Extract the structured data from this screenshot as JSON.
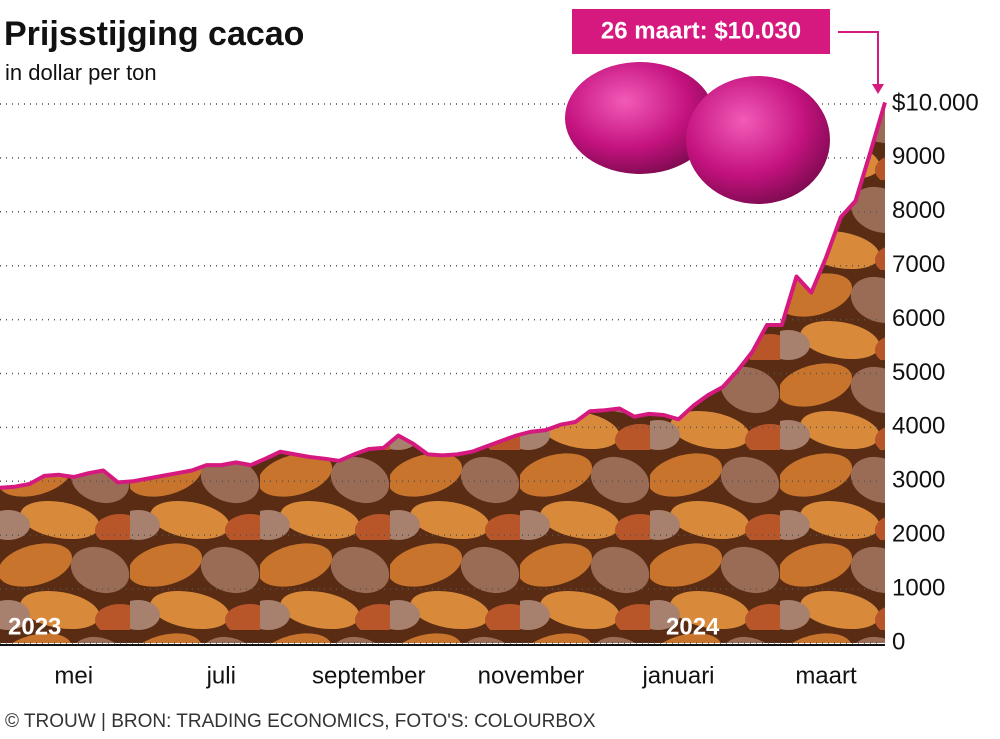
{
  "chart_data": {
    "type": "area",
    "title": "Prijsstijging cacao",
    "subtitle": "in dollar per ton",
    "annotation": "26 maart: $10.030",
    "year_labels": [
      "2023",
      "2024"
    ],
    "source": "© TROUW | BRON: TRADING ECONOMICS, FOTO'S: COLOURBOX",
    "categories": [
      null,
      null,
      null,
      null,
      null,
      "mei",
      null,
      null,
      null,
      null,
      null,
      null,
      null,
      null,
      null,
      "juli",
      null,
      null,
      null,
      null,
      null,
      null,
      null,
      null,
      null,
      "september",
      null,
      null,
      null,
      null,
      null,
      null,
      null,
      null,
      null,
      null,
      "november",
      null,
      null,
      null,
      null,
      null,
      null,
      null,
      null,
      null,
      "januari",
      null,
      null,
      null,
      null,
      null,
      null,
      null,
      null,
      null,
      "maart",
      null,
      null,
      null,
      null
    ],
    "values": [
      2880,
      2900,
      2950,
      3100,
      3120,
      3080,
      3150,
      3200,
      2980,
      3000,
      3050,
      3100,
      3150,
      3200,
      3300,
      3300,
      3350,
      3300,
      3420,
      3550,
      3500,
      3450,
      3420,
      3380,
      3500,
      3600,
      3620,
      3850,
      3700,
      3500,
      3480,
      3500,
      3550,
      3650,
      3750,
      3850,
      3920,
      3950,
      4050,
      4100,
      4300,
      4320,
      4350,
      4200,
      4250,
      4230,
      4150,
      4400,
      4600,
      4750,
      5050,
      5400,
      5900,
      5900,
      6800,
      6500,
      7150,
      7900,
      8200,
      9100,
      10030
    ],
    "color": "#d6197f",
    "ylim": [
      0,
      10000
    ],
    "yticks": [
      0,
      1000,
      2000,
      3000,
      4000,
      5000,
      6000,
      7000,
      8000,
      9000,
      {
        "value": 10000,
        "label": "$10.000"
      }
    ],
    "grid": true
  }
}
